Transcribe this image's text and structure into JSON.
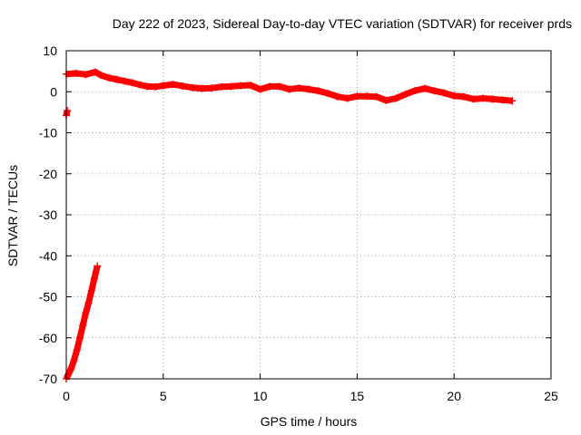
{
  "chart_data": {
    "type": "scatter",
    "title": "Day 222 of 2023, Sidereal Day-to-day VTEC variation (SDTVAR) for receiver prds",
    "xlabel": "GPS time / hours",
    "ylabel": "SDTVAR / TECUs",
    "xlim": [
      0,
      25
    ],
    "ylim": [
      -70,
      10
    ],
    "xticks": [
      0,
      5,
      10,
      15,
      20,
      25
    ],
    "yticks": [
      -70,
      -60,
      -50,
      -40,
      -30,
      -20,
      -10,
      0,
      10
    ],
    "grid": true,
    "series": [
      {
        "name": "prds",
        "color": "#ff0000",
        "segments": [
          {
            "x": [
              0.0,
              0.05
            ],
            "y": [
              -5.8,
              -4.6
            ]
          },
          {
            "x": [
              0.0,
              0.1,
              0.25,
              0.4,
              0.55,
              0.7,
              0.85,
              1.0,
              1.15,
              1.3,
              1.45,
              1.6
            ],
            "y": [
              -70.0,
              -69.0,
              -67.5,
              -65.5,
              -63.0,
              -60.0,
              -57.0,
              -54.0,
              -51.5,
              -48.5,
              -45.5,
              -42.5
            ]
          },
          {
            "x": [
              0.0,
              0.5,
              1.0,
              1.5,
              1.8,
              2.2,
              2.6,
              3.0,
              3.4,
              3.8,
              4.2,
              4.6,
              5.0,
              5.5,
              6.0,
              6.5,
              7.0,
              7.5,
              8.0,
              8.5,
              9.0,
              9.5,
              10.0,
              10.5,
              11.0,
              11.5,
              12.0,
              12.5,
              13.0,
              13.5,
              14.0,
              14.5,
              15.0,
              15.5,
              16.0,
              16.5,
              17.0,
              17.5,
              18.0,
              18.5,
              19.0,
              19.5,
              20.0,
              20.5,
              21.0,
              21.5,
              22.0,
              22.5,
              23.0
            ],
            "y": [
              4.3,
              4.5,
              4.2,
              4.8,
              4.0,
              3.4,
              3.0,
              2.6,
              2.2,
              1.7,
              1.3,
              1.2,
              1.5,
              1.8,
              1.4,
              1.0,
              0.8,
              0.9,
              1.2,
              1.3,
              1.5,
              1.6,
              0.6,
              1.3,
              1.3,
              0.6,
              0.9,
              0.6,
              0.2,
              -0.4,
              -1.2,
              -1.6,
              -1.1,
              -1.1,
              -1.2,
              -2.1,
              -1.6,
              -0.6,
              0.3,
              0.8,
              0.2,
              -0.3,
              -1.0,
              -1.2,
              -1.8,
              -1.6,
              -1.8,
              -2.0,
              -2.2
            ]
          }
        ]
      }
    ]
  }
}
